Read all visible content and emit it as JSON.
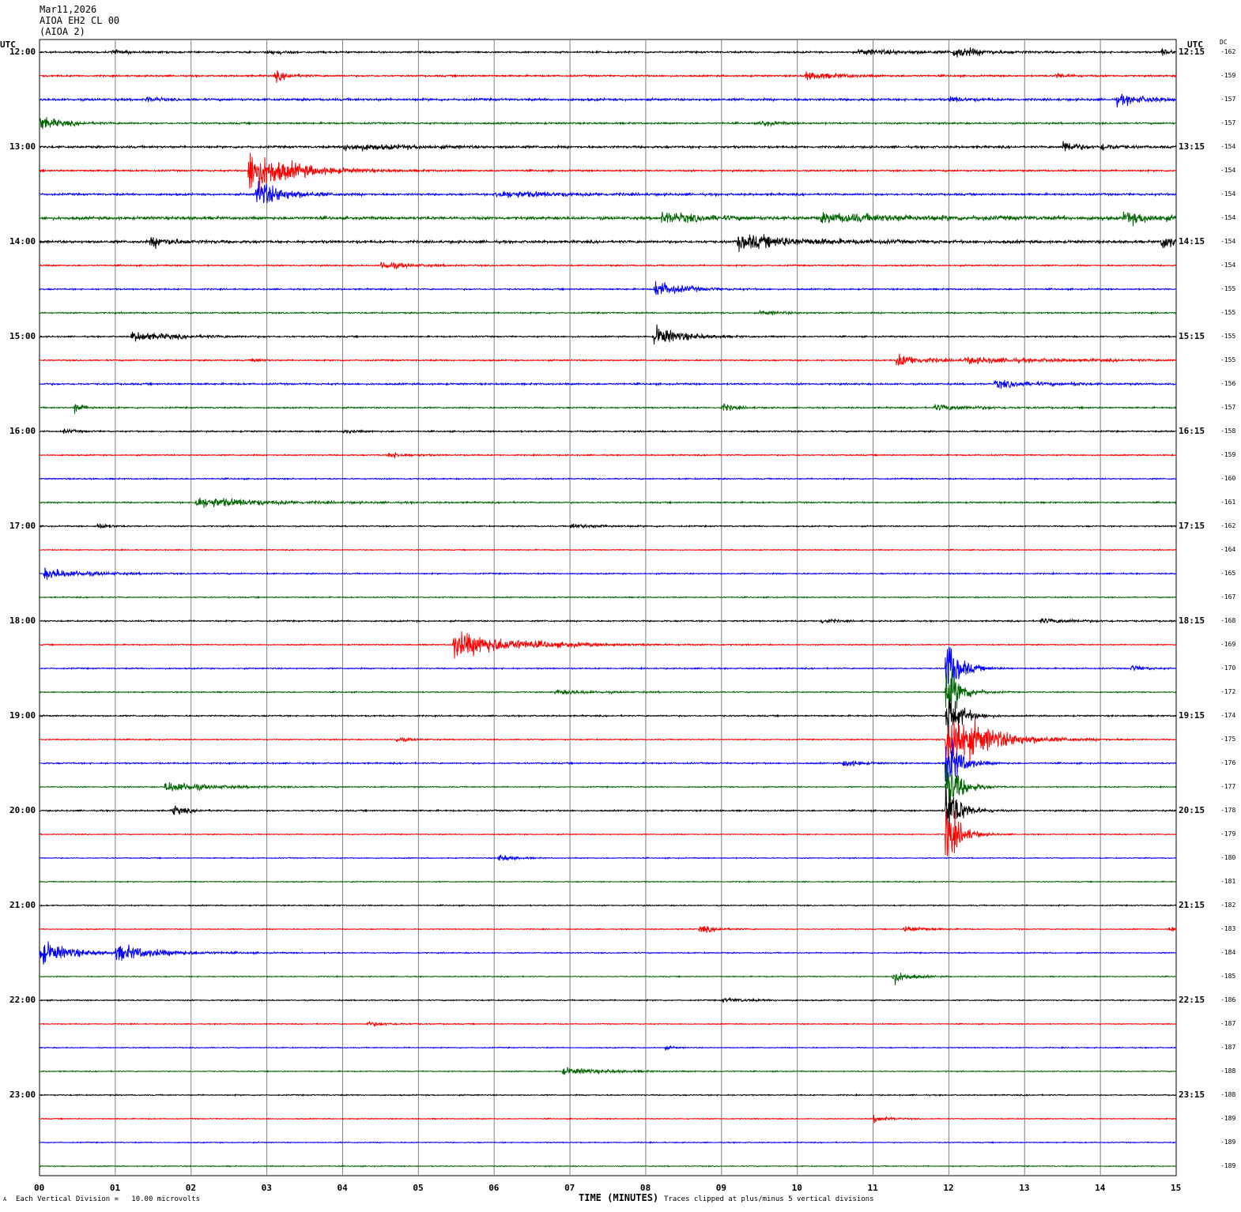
{
  "header": {
    "date": "Mar11,2026",
    "channel": "AIOA EH2 CL 00",
    "station": "(AIOA 2)"
  },
  "footer": {
    "scale_note": "Each Vertical Division =   10.00 microvolts",
    "clip_note": "Traces clipped at plus/minus 5 vertical divisions",
    "corner_mark": "A"
  },
  "colors": {
    "trace_cycle": [
      "#000000",
      "#ff0000",
      "#0000ff",
      "#006400"
    ],
    "grid": "#808080"
  },
  "chart_data": {
    "type": "line",
    "title": "",
    "xlabel": "TIME (MINUTES)",
    "left_axis_title": "UTC",
    "right_axis_title": "UTC",
    "dc_title": "DC",
    "x_ticks": [
      "00",
      "01",
      "02",
      "03",
      "04",
      "05",
      "06",
      "07",
      "08",
      "09",
      "10",
      "11",
      "12",
      "13",
      "14",
      "15"
    ],
    "xlim": [
      0,
      15
    ],
    "minutes_per_row": 15,
    "rows": 48,
    "left_time_labels": [
      "12:00",
      "13:00",
      "14:00",
      "15:00",
      "16:00",
      "17:00",
      "18:00",
      "19:00",
      "20:00",
      "21:00",
      "22:00",
      "23:00"
    ],
    "right_time_labels": [
      "12:15",
      "13:15",
      "14:15",
      "15:15",
      "16:15",
      "17:15",
      "18:15",
      "19:15",
      "20:15",
      "21:15",
      "22:15",
      "23:15"
    ],
    "dc_offsets": [
      "-162",
      "-159",
      "-157",
      "-157",
      "-154",
      "-154",
      "-154",
      "-154",
      "-154",
      "-154",
      "-155",
      "-155",
      "-155",
      "-155",
      "-156",
      "-157",
      "-158",
      "-159",
      "-160",
      "-161",
      "-162",
      "-164",
      "-165",
      "-167",
      "-168",
      "-169",
      "-170",
      "-172",
      "-174",
      "-175",
      "-176",
      "-177",
      "-178",
      "-179",
      "-180",
      "-181",
      "-182",
      "-183",
      "-184",
      "-185",
      "-186",
      "-187",
      "-187",
      "-188",
      "-188",
      "-189",
      "-189",
      "-189"
    ],
    "noise": [
      0.12,
      0.12,
      0.16,
      0.12,
      0.15,
      0.12,
      0.14,
      0.2,
      0.18,
      0.1,
      0.1,
      0.1,
      0.1,
      0.1,
      0.12,
      0.1,
      0.1,
      0.09,
      0.09,
      0.1,
      0.09,
      0.07,
      0.09,
      0.08,
      0.1,
      0.08,
      0.09,
      0.08,
      0.1,
      0.08,
      0.1,
      0.08,
      0.1,
      0.07,
      0.07,
      0.07,
      0.08,
      0.07,
      0.08,
      0.07,
      0.08,
      0.07,
      0.07,
      0.07,
      0.08,
      0.07,
      0.07,
      0.07
    ],
    "events": [
      {
        "row": 0,
        "minute": 0.95,
        "amp": 0.35,
        "dur": 0.3
      },
      {
        "row": 0,
        "minute": 3.0,
        "amp": 0.3,
        "dur": 0.4
      },
      {
        "row": 0,
        "minute": 10.8,
        "amp": 0.35,
        "dur": 1.4
      },
      {
        "row": 0,
        "minute": 12.05,
        "amp": 0.8,
        "dur": 0.6
      },
      {
        "row": 0,
        "minute": 14.8,
        "amp": 0.6,
        "dur": 0.2
      },
      {
        "row": 1,
        "minute": 3.1,
        "amp": 0.8,
        "dur": 0.3
      },
      {
        "row": 1,
        "minute": 10.1,
        "amp": 0.6,
        "dur": 0.7
      },
      {
        "row": 1,
        "minute": 13.4,
        "amp": 0.4,
        "dur": 0.3
      },
      {
        "row": 2,
        "minute": 1.4,
        "amp": 0.4,
        "dur": 0.3
      },
      {
        "row": 2,
        "minute": 12.0,
        "amp": 0.4,
        "dur": 0.4
      },
      {
        "row": 2,
        "minute": 14.2,
        "amp": 0.7,
        "dur": 0.8
      },
      {
        "row": 3,
        "minute": 0.0,
        "amp": 1.0,
        "dur": 0.5
      },
      {
        "row": 3,
        "minute": 9.5,
        "amp": 0.5,
        "dur": 0.3
      },
      {
        "row": 4,
        "minute": 4.0,
        "amp": 0.5,
        "dur": 1.5
      },
      {
        "row": 4,
        "minute": 13.5,
        "amp": 1.1,
        "dur": 0.3
      },
      {
        "row": 4,
        "minute": 14.0,
        "amp": 0.5,
        "dur": 0.4
      },
      {
        "row": 5,
        "minute": 2.75,
        "amp": 3.5,
        "dur": 0.9
      },
      {
        "row": 6,
        "minute": 2.85,
        "amp": 2.2,
        "dur": 0.6
      },
      {
        "row": 6,
        "minute": 6.0,
        "amp": 0.5,
        "dur": 1.5
      },
      {
        "row": 7,
        "minute": 8.2,
        "amp": 0.8,
        "dur": 1.0
      },
      {
        "row": 7,
        "minute": 10.3,
        "amp": 0.6,
        "dur": 2.5
      },
      {
        "row": 7,
        "minute": 14.3,
        "amp": 0.9,
        "dur": 0.7
      },
      {
        "row": 8,
        "minute": 1.45,
        "amp": 0.8,
        "dur": 0.5
      },
      {
        "row": 8,
        "minute": 9.2,
        "amp": 1.1,
        "dur": 1.5
      },
      {
        "row": 8,
        "minute": 14.8,
        "amp": 1.3,
        "dur": 0.3
      },
      {
        "row": 9,
        "minute": 4.5,
        "amp": 0.6,
        "dur": 0.6
      },
      {
        "row": 10,
        "minute": 8.1,
        "amp": 1.3,
        "dur": 0.6
      },
      {
        "row": 11,
        "minute": 9.5,
        "amp": 0.3,
        "dur": 0.5
      },
      {
        "row": 12,
        "minute": 1.2,
        "amp": 0.7,
        "dur": 1.0
      },
      {
        "row": 12,
        "minute": 8.1,
        "amp": 1.6,
        "dur": 0.6
      },
      {
        "row": 13,
        "minute": 2.8,
        "amp": 0.5,
        "dur": 0.15
      },
      {
        "row": 13,
        "minute": 11.3,
        "amp": 1.0,
        "dur": 0.6
      },
      {
        "row": 13,
        "minute": 12.2,
        "amp": 0.4,
        "dur": 2.3
      },
      {
        "row": 14,
        "minute": 12.6,
        "amp": 0.6,
        "dur": 0.8
      },
      {
        "row": 14,
        "minute": 13.6,
        "amp": 0.3,
        "dur": 0.2
      },
      {
        "row": 15,
        "minute": 0.45,
        "amp": 0.9,
        "dur": 0.2
      },
      {
        "row": 15,
        "minute": 9.0,
        "amp": 0.6,
        "dur": 0.3
      },
      {
        "row": 15,
        "minute": 11.8,
        "amp": 0.4,
        "dur": 1.0
      },
      {
        "row": 16,
        "minute": 0.3,
        "amp": 0.3,
        "dur": 0.3
      },
      {
        "row": 16,
        "minute": 4.0,
        "amp": 0.3,
        "dur": 0.3
      },
      {
        "row": 17,
        "minute": 4.6,
        "amp": 0.5,
        "dur": 0.4
      },
      {
        "row": 19,
        "minute": 2.05,
        "amp": 0.8,
        "dur": 1.5
      },
      {
        "row": 20,
        "minute": 0.75,
        "amp": 0.5,
        "dur": 0.25
      },
      {
        "row": 20,
        "minute": 7.0,
        "amp": 0.3,
        "dur": 0.8
      },
      {
        "row": 22,
        "minute": 0.05,
        "amp": 0.8,
        "dur": 0.9
      },
      {
        "row": 24,
        "minute": 10.3,
        "amp": 0.4,
        "dur": 0.3
      },
      {
        "row": 24,
        "minute": 13.2,
        "amp": 0.3,
        "dur": 0.9
      },
      {
        "row": 25,
        "minute": 5.45,
        "amp": 2.0,
        "dur": 1.4
      },
      {
        "row": 26,
        "minute": 14.4,
        "amp": 0.5,
        "dur": 0.3
      },
      {
        "row": 27,
        "minute": 6.8,
        "amp": 0.3,
        "dur": 1.0
      },
      {
        "row": 26,
        "minute": 11.95,
        "amp": 5.0,
        "dur": 0.3
      },
      {
        "row": 27,
        "minute": 11.95,
        "amp": 5.0,
        "dur": 0.3
      },
      {
        "row": 28,
        "minute": 11.95,
        "amp": 5.0,
        "dur": 0.3
      },
      {
        "row": 29,
        "minute": 11.95,
        "amp": 5.0,
        "dur": 0.9
      },
      {
        "row": 30,
        "minute": 11.95,
        "amp": 5.0,
        "dur": 0.3
      },
      {
        "row": 31,
        "minute": 11.95,
        "amp": 5.0,
        "dur": 0.3
      },
      {
        "row": 32,
        "minute": 11.95,
        "amp": 5.0,
        "dur": 0.3
      },
      {
        "row": 33,
        "minute": 11.95,
        "amp": 5.0,
        "dur": 0.3
      },
      {
        "row": 29,
        "minute": 4.7,
        "amp": 0.4,
        "dur": 0.3
      },
      {
        "row": 30,
        "minute": 10.6,
        "amp": 0.7,
        "dur": 0.3
      },
      {
        "row": 31,
        "minute": 1.65,
        "amp": 0.8,
        "dur": 1.0
      },
      {
        "row": 32,
        "minute": 1.75,
        "amp": 0.8,
        "dur": 0.3
      },
      {
        "row": 34,
        "minute": 6.05,
        "amp": 0.6,
        "dur": 0.3
      },
      {
        "row": 37,
        "minute": 8.7,
        "amp": 0.6,
        "dur": 0.4
      },
      {
        "row": 37,
        "minute": 11.4,
        "amp": 0.6,
        "dur": 0.4
      },
      {
        "row": 37,
        "minute": 14.9,
        "amp": 0.7,
        "dur": 0.1
      },
      {
        "row": 38,
        "minute": 0.0,
        "amp": 1.8,
        "dur": 0.7
      },
      {
        "row": 38,
        "minute": 1.0,
        "amp": 1.1,
        "dur": 1.0
      },
      {
        "row": 39,
        "minute": 11.25,
        "amp": 1.1,
        "dur": 0.35
      },
      {
        "row": 40,
        "minute": 9.0,
        "amp": 0.3,
        "dur": 0.6
      },
      {
        "row": 41,
        "minute": 4.3,
        "amp": 0.3,
        "dur": 0.6
      },
      {
        "row": 42,
        "minute": 8.25,
        "amp": 0.3,
        "dur": 0.2
      },
      {
        "row": 43,
        "minute": 6.9,
        "amp": 0.5,
        "dur": 1.0
      },
      {
        "row": 45,
        "minute": 11.0,
        "amp": 0.6,
        "dur": 0.3
      }
    ]
  }
}
